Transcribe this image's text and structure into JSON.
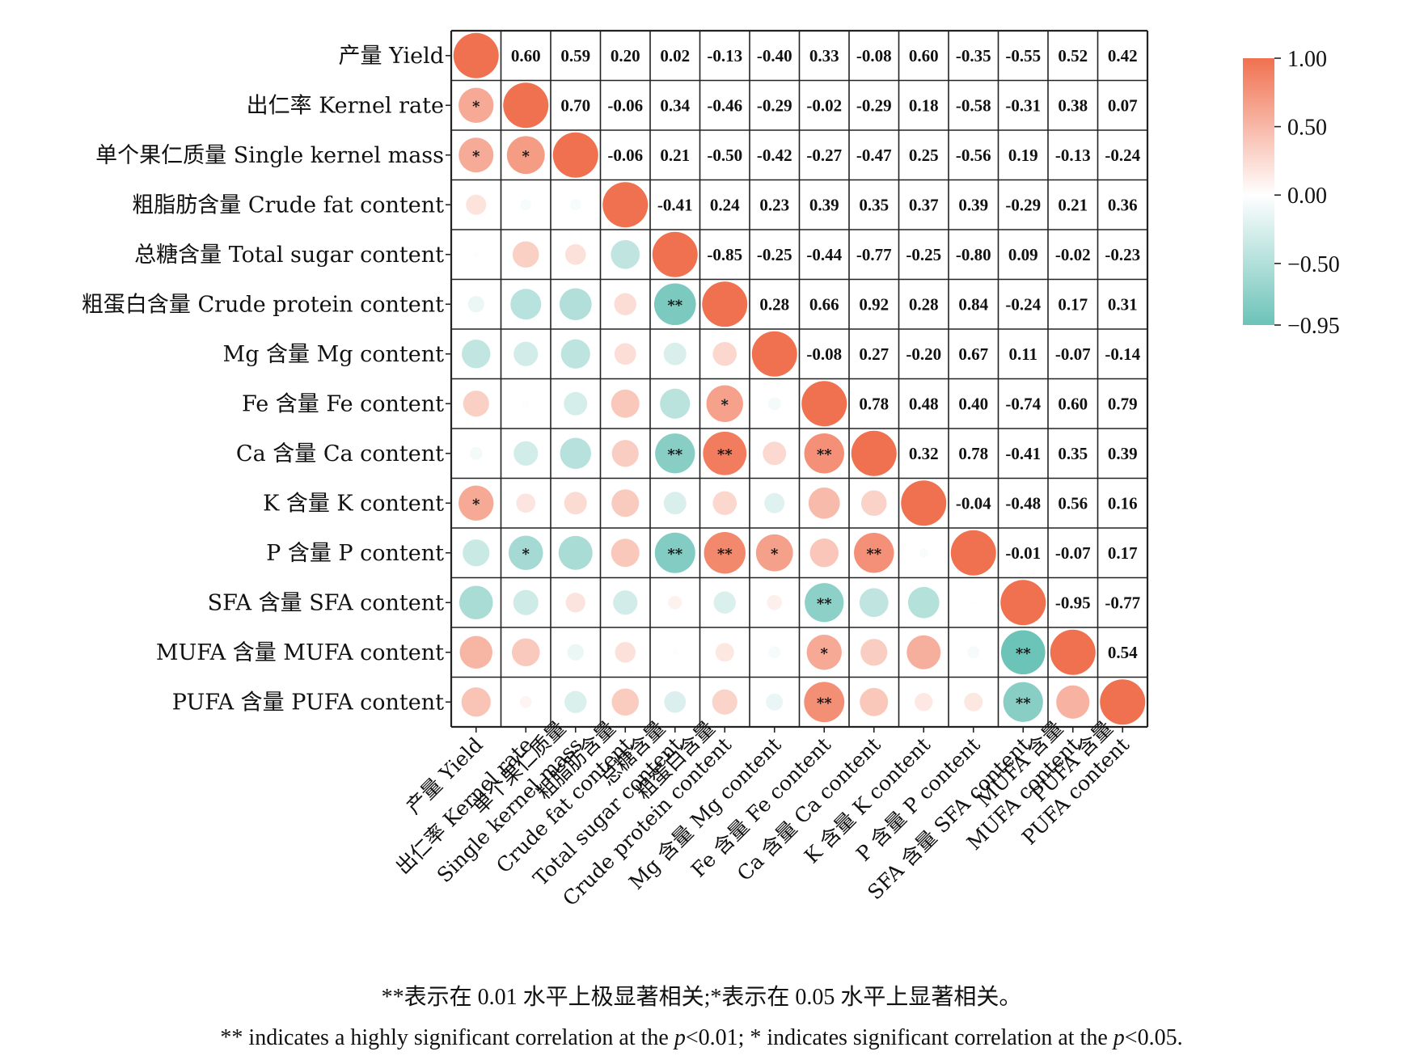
{
  "chart_data": {
    "type": "heatmap",
    "variables": [
      "产量 Yield",
      "出仁率 Kernel rate",
      "单个果仁质量 Single kernel mass",
      "粗脂肪含量 Crude fat content",
      "总糖含量 Total sugar content",
      "粗蛋白含量 Crude protein content",
      "Mg 含量 Mg content",
      "Fe 含量 Fe content",
      "Ca 含量 Ca content",
      "K 含量 K content",
      "P 含量 P content",
      "SFA 含量 SFA content",
      "MUFA 含量 MUFA content",
      "PUFA 含量 PUFA content"
    ],
    "x_tick_labels": [
      [
        "产量 Yield"
      ],
      [
        "出仁率 Kernel rate"
      ],
      [
        "单个果仁质量",
        "Single kernel mass"
      ],
      [
        "粗脂肪含量",
        "Crude fat content"
      ],
      [
        "总糖含量",
        "Total sugar content"
      ],
      [
        "粗蛋白含量",
        "Crude protein content"
      ],
      [
        "Mg 含量 Mg content"
      ],
      [
        "Fe 含量 Fe content"
      ],
      [
        "Ca 含量 Ca content"
      ],
      [
        "K 含量 K content"
      ],
      [
        "P 含量 P content"
      ],
      [
        "SFA 含量 SFA content"
      ],
      [
        "MUFA 含量",
        "MUFA content"
      ],
      [
        "PUFA 含量",
        "PUFA content"
      ]
    ],
    "matrix": [
      [
        1,
        0.6,
        0.59,
        0.2,
        0.02,
        -0.13,
        -0.4,
        0.33,
        -0.08,
        0.6,
        -0.35,
        -0.55,
        0.52,
        0.42
      ],
      [
        0.6,
        1,
        0.7,
        -0.06,
        0.34,
        -0.46,
        -0.29,
        -0.02,
        -0.29,
        0.18,
        -0.58,
        -0.31,
        0.38,
        0.07
      ],
      [
        0.59,
        0.7,
        1,
        -0.06,
        0.21,
        -0.5,
        -0.42,
        -0.27,
        -0.47,
        0.25,
        -0.56,
        0.19,
        -0.13,
        -0.24
      ],
      [
        0.2,
        -0.06,
        -0.06,
        1,
        -0.41,
        0.24,
        0.23,
        0.39,
        0.35,
        0.37,
        0.39,
        -0.29,
        0.21,
        0.36
      ],
      [
        0.02,
        0.34,
        0.21,
        -0.41,
        1,
        -0.85,
        -0.25,
        -0.44,
        -0.77,
        -0.25,
        -0.8,
        0.09,
        -0.02,
        -0.23
      ],
      [
        -0.13,
        -0.46,
        -0.5,
        0.24,
        -0.85,
        1,
        0.28,
        0.66,
        0.92,
        0.28,
        0.84,
        -0.24,
        0.17,
        0.31
      ],
      [
        -0.4,
        -0.29,
        -0.42,
        0.23,
        -0.25,
        0.28,
        1,
        -0.08,
        0.27,
        -0.2,
        0.67,
        0.11,
        -0.07,
        -0.14
      ],
      [
        0.33,
        -0.02,
        -0.27,
        0.39,
        -0.44,
        0.66,
        -0.08,
        1,
        0.78,
        0.48,
        0.4,
        -0.74,
        0.6,
        0.79
      ],
      [
        -0.08,
        -0.29,
        -0.47,
        0.35,
        -0.77,
        0.92,
        0.27,
        0.78,
        1,
        0.32,
        0.78,
        -0.41,
        0.35,
        0.39
      ],
      [
        0.6,
        0.18,
        0.25,
        0.37,
        -0.25,
        0.28,
        -0.2,
        0.48,
        0.32,
        1,
        -0.04,
        -0.48,
        0.56,
        0.16
      ],
      [
        -0.35,
        -0.58,
        -0.56,
        0.39,
        -0.8,
        0.84,
        0.67,
        0.4,
        0.78,
        -0.04,
        1,
        -0.01,
        -0.07,
        0.17
      ],
      [
        -0.55,
        -0.31,
        0.19,
        -0.29,
        0.09,
        -0.24,
        0.11,
        -0.74,
        -0.41,
        -0.48,
        -0.01,
        1,
        -0.95,
        -0.77
      ],
      [
        0.52,
        0.38,
        -0.13,
        0.21,
        -0.02,
        0.17,
        -0.07,
        0.6,
        0.35,
        0.56,
        -0.07,
        -0.95,
        1,
        0.54
      ],
      [
        0.42,
        0.07,
        -0.24,
        0.36,
        -0.23,
        0.31,
        -0.14,
        0.79,
        0.39,
        0.16,
        0.17,
        -0.77,
        0.54,
        1
      ]
    ],
    "significance": [
      [
        "",
        "",
        "",
        "",
        "",
        "",
        "",
        "",
        "",
        "",
        "",
        "",
        "",
        ""
      ],
      [
        "*",
        "",
        "",
        "",
        "",
        "",
        "",
        "",
        "",
        "",
        "",
        "",
        "",
        ""
      ],
      [
        "*",
        "*",
        "",
        "",
        "",
        "",
        "",
        "",
        "",
        "",
        "",
        "",
        "",
        ""
      ],
      [
        "",
        "",
        "",
        "",
        "",
        "",
        "",
        "",
        "",
        "",
        "",
        "",
        "",
        ""
      ],
      [
        "",
        "",
        "",
        "",
        "",
        "",
        "",
        "",
        "",
        "",
        "",
        "",
        "",
        ""
      ],
      [
        "",
        "",
        "",
        "",
        "**",
        "",
        "",
        "",
        "",
        "",
        "",
        "",
        "",
        ""
      ],
      [
        "",
        "",
        "",
        "",
        "",
        "",
        "",
        "",
        "",
        "",
        "",
        "",
        "",
        ""
      ],
      [
        "",
        "",
        "",
        "",
        "",
        "*",
        "",
        "",
        "",
        "",
        "",
        "",
        "",
        ""
      ],
      [
        "",
        "",
        "",
        "",
        "**",
        "**",
        "",
        "**",
        "",
        "",
        "",
        "",
        "",
        ""
      ],
      [
        "*",
        "",
        "",
        "",
        "",
        "",
        "",
        "",
        "",
        "",
        "",
        "",
        "",
        ""
      ],
      [
        "",
        "*",
        "",
        "",
        "**",
        "**",
        "*",
        "",
        "**",
        "",
        "",
        "",
        "",
        ""
      ],
      [
        "",
        "",
        "",
        "",
        "",
        "",
        "",
        "**",
        "",
        "",
        "",
        "",
        "",
        ""
      ],
      [
        "",
        "",
        "",
        "",
        "",
        "",
        "",
        "*",
        "",
        "",
        "",
        "**",
        "",
        ""
      ],
      [
        "",
        "",
        "",
        "",
        "",
        "",
        "",
        "**",
        "",
        "",
        "",
        "**",
        "",
        ""
      ]
    ],
    "lower_triangle": "circles",
    "upper_triangle": "numbers",
    "colorbar": {
      "min": -0.95,
      "max": 1.0,
      "ticks": [
        1.0,
        0.5,
        0.0,
        -0.5,
        -0.95
      ],
      "tick_labels": [
        "1.00",
        "0.50",
        "0.00",
        "−0.50",
        "−0.95"
      ],
      "color_high": "#f07150",
      "color_mid": "#ffffff",
      "color_low": "#6cc3b8"
    }
  },
  "notes": {
    "chinese": "**表示在 0.01 水平上极显著相关;*表示在 0.05 水平上显著相关。",
    "english": "** indicates a highly significant correlation at the p<0.01; * indicates significant correlation at the p<0.05."
  }
}
